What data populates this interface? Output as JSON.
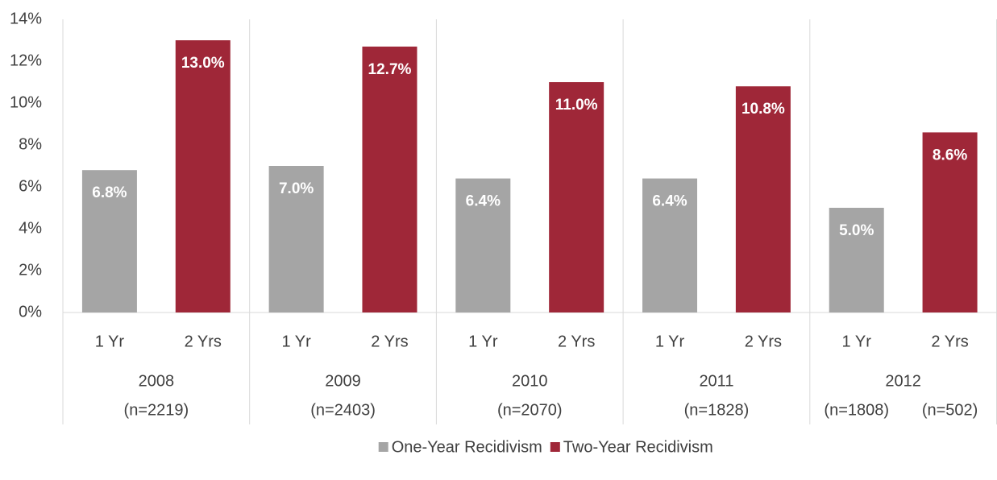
{
  "chart_data": {
    "type": "bar",
    "subcategories": [
      "1 Yr",
      "2 Yrs"
    ],
    "groups": [
      {
        "label": "2008",
        "n": [
          "(n=2219)"
        ]
      },
      {
        "label": "2009",
        "n": [
          "(n=2403)"
        ]
      },
      {
        "label": "2010",
        "n": [
          "(n=2070)"
        ]
      },
      {
        "label": "2011",
        "n": [
          "(n=1828)"
        ]
      },
      {
        "label": "2012",
        "n": [
          "(n=1808)",
          "(n=502)"
        ]
      }
    ],
    "series": [
      {
        "name": "One-Year Recidivism",
        "color": "#a5a5a5",
        "values": [
          6.8,
          7.0,
          6.4,
          6.4,
          5.0
        ],
        "value_labels": [
          "6.8%",
          "7.0%",
          "6.4%",
          "6.4%",
          "5.0%"
        ]
      },
      {
        "name": "Two-Year Recidivism",
        "color": "#9f2738",
        "values": [
          13.0,
          12.7,
          11.0,
          10.8,
          8.6
        ],
        "value_labels": [
          "13.0%",
          "12.7%",
          "11.0%",
          "10.8%",
          "8.6%"
        ]
      }
    ],
    "ylim": [
      0,
      14
    ],
    "yticks": [
      {
        "value": 0,
        "label": "0%"
      },
      {
        "value": 2,
        "label": "2%"
      },
      {
        "value": 4,
        "label": "4%"
      },
      {
        "value": 6,
        "label": "6%"
      },
      {
        "value": 8,
        "label": "8%"
      },
      {
        "value": 10,
        "label": "10%"
      },
      {
        "value": 12,
        "label": "12%"
      },
      {
        "value": 14,
        "label": "14%"
      }
    ],
    "grid": false,
    "legend": "bottom"
  }
}
